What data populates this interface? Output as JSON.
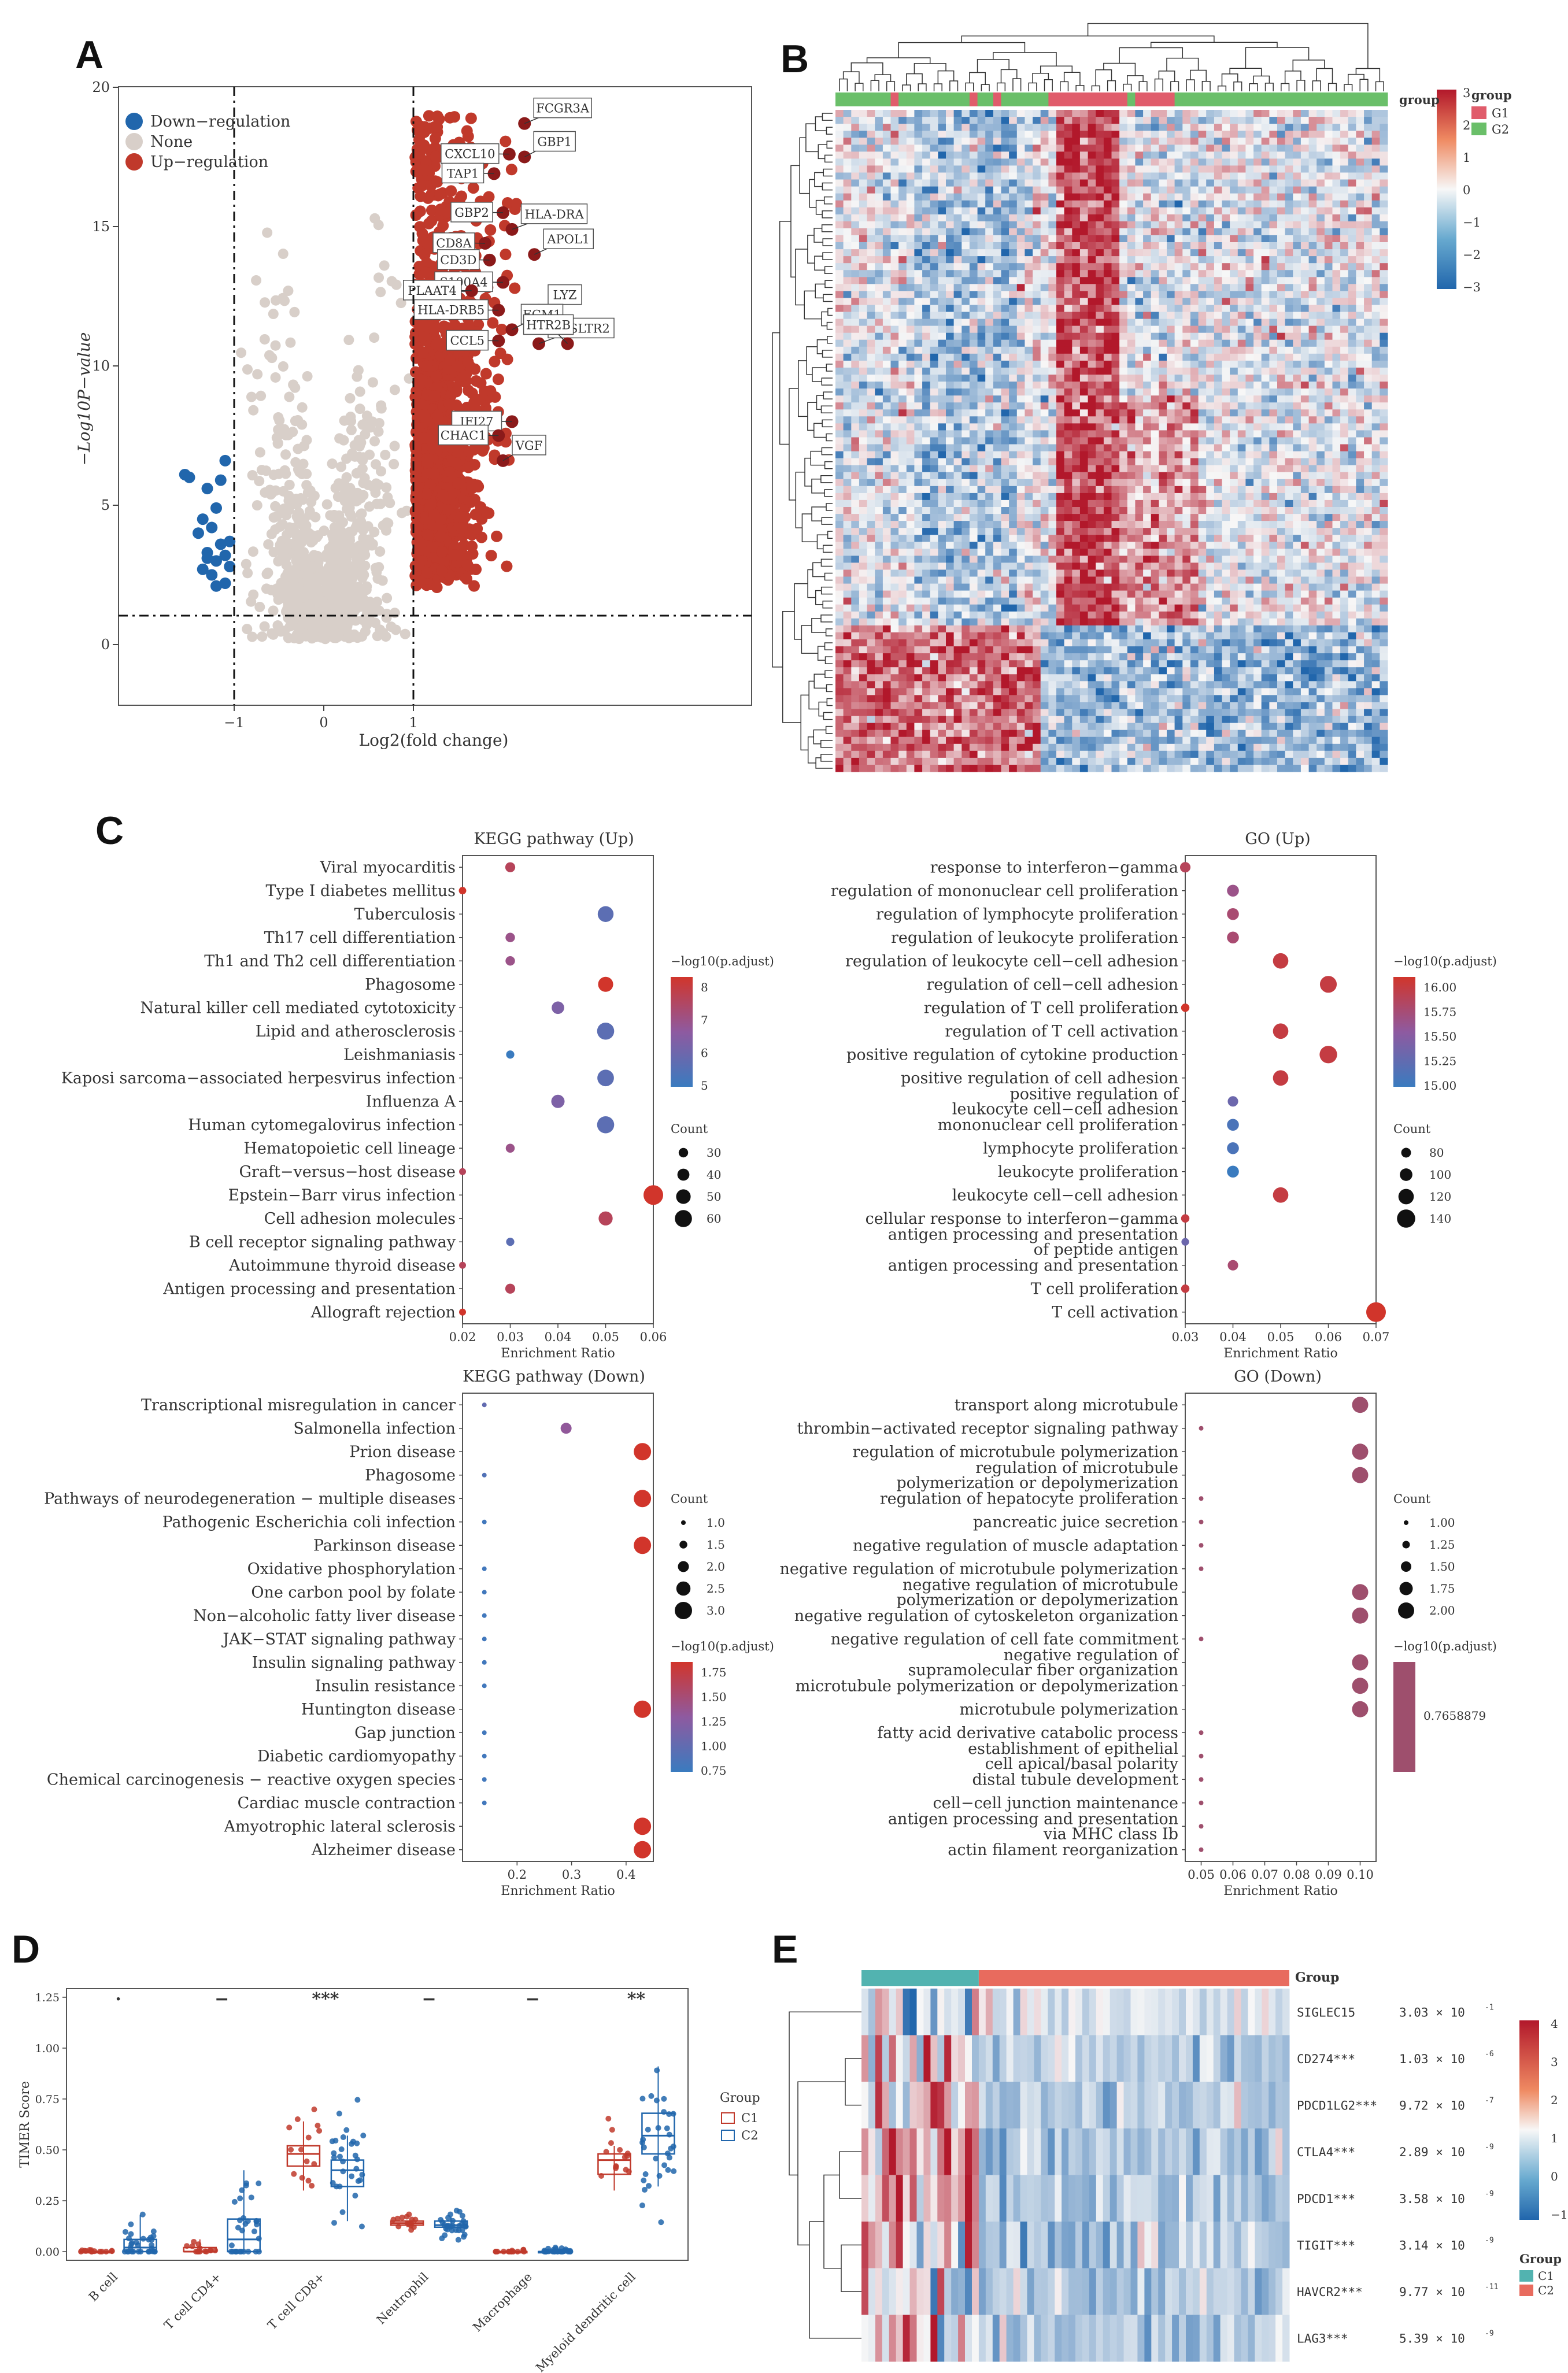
{
  "panels": {
    "A": "A",
    "B": "B",
    "C": "C",
    "D": "D",
    "E": "E"
  },
  "colors": {
    "up": "#c0392b",
    "down": "#2166ac",
    "none": "#d8cfc9",
    "g1": "#e05c6b",
    "g2": "#6abf69",
    "c1": "#52b3b0",
    "c2": "#e86b5e"
  },
  "volcano": {
    "legend": [
      "Down−regulation",
      "None",
      "Up−regulation"
    ],
    "xlabel": "Log2(fold change)",
    "ylabel": "−Log10P−value",
    "xticks": [
      "−1",
      "0",
      "1"
    ],
    "yticks": [
      "0",
      "5",
      "10",
      "15",
      "20"
    ],
    "genes": [
      {
        "name": "FCGR3A",
        "x": 2.24,
        "y": 18.7
      },
      {
        "name": "CXCL10",
        "x": 2.07,
        "y": 17.6
      },
      {
        "name": "GBP1",
        "x": 2.24,
        "y": 17.5
      },
      {
        "name": "TAP1",
        "x": 1.9,
        "y": 16.9
      },
      {
        "name": "GBP2",
        "x": 2.0,
        "y": 15.5
      },
      {
        "name": "HLA-DRA",
        "x": 2.1,
        "y": 14.9
      },
      {
        "name": "CD8A",
        "x": 1.8,
        "y": 14.4
      },
      {
        "name": "CD3D",
        "x": 1.85,
        "y": 13.8
      },
      {
        "name": "APOL1",
        "x": 2.35,
        "y": 14.0
      },
      {
        "name": "S100A4",
        "x": 2.0,
        "y": 13.0
      },
      {
        "name": "PLAAT4",
        "x": 1.65,
        "y": 12.7
      },
      {
        "name": "HLA-DRB5",
        "x": 1.95,
        "y": 12.0
      },
      {
        "name": "LYZ",
        "x": 2.4,
        "y": 12.0
      },
      {
        "name": "ECM1",
        "x": 2.1,
        "y": 11.3
      },
      {
        "name": "CCL5",
        "x": 1.95,
        "y": 10.9
      },
      {
        "name": "CYSLTR2",
        "x": 2.4,
        "y": 10.8
      },
      {
        "name": "HTR2B",
        "x": 2.72,
        "y": 10.8
      },
      {
        "name": "IFI27",
        "x": 2.1,
        "y": 8.0
      },
      {
        "name": "CHAC1",
        "x": 1.95,
        "y": 7.5
      },
      {
        "name": "VGF",
        "x": 2.0,
        "y": 6.6
      }
    ]
  },
  "heatmap_b": {
    "legend_title": "group",
    "groups": [
      "G1",
      "G2"
    ],
    "scale": [
      "3",
      "2",
      "1",
      "0",
      "−1",
      "−2",
      "−3"
    ]
  },
  "kegg_up": {
    "title": "KEGG pathway (Up)",
    "xlabel": "Enrichment Ratio",
    "xticks": [
      "0.02",
      "0.03",
      "0.04",
      "0.05",
      "0.06"
    ],
    "terms": [
      "Viral myocarditis",
      "Type I diabetes mellitus",
      "Tuberculosis",
      "Th17 cell differentiation",
      "Th1 and Th2 cell differentiation",
      "Phagosome",
      "Natural killer cell mediated cytotoxicity",
      "Lipid and atherosclerosis",
      "Leishmaniasis",
      "Kaposi sarcoma−associated herpesvirus infection",
      "Influenza A",
      "Human cytomegalovirus infection",
      "Hematopoietic cell lineage",
      "Graft−versus−host disease",
      "Epstein−Barr virus infection",
      "Cell adhesion molecules",
      "B cell receptor signaling pathway",
      "Autoimmune thyroid disease",
      "Antigen processing and presentation",
      "Allograft rejection"
    ],
    "ratio": [
      0.03,
      0.02,
      0.05,
      0.03,
      0.03,
      0.05,
      0.04,
      0.05,
      0.03,
      0.05,
      0.04,
      0.05,
      0.03,
      0.02,
      0.06,
      0.05,
      0.03,
      0.02,
      0.03,
      0.02
    ],
    "count": [
      32,
      22,
      55,
      30,
      30,
      52,
      42,
      60,
      25,
      58,
      45,
      60,
      28,
      20,
      70,
      48,
      25,
      20,
      32,
      20
    ],
    "padj": [
      8,
      9,
      5,
      7,
      7,
      9,
      6,
      5,
      4,
      5,
      6,
      5,
      7,
      8,
      9,
      8,
      5,
      8,
      8,
      9
    ],
    "legend_color_title": "−log10(p.adjust)",
    "color_ticks": [
      "8",
      "7",
      "6",
      "5"
    ],
    "legend_size_title": "Count",
    "size_ticks": [
      "30",
      "40",
      "50",
      "60"
    ]
  },
  "go_up": {
    "title": "GO (Up)",
    "xlabel": "Enrichment Ratio",
    "xticks": [
      "0.03",
      "0.04",
      "0.05",
      "0.06",
      "0.07"
    ],
    "terms": [
      "response to interferon−gamma",
      "regulation of mononuclear cell proliferation",
      "regulation of lymphocyte proliferation",
      "regulation of leukocyte proliferation",
      "regulation of leukocyte cell−cell adhesion",
      "regulation of cell−cell adhesion",
      "regulation of T cell proliferation",
      "regulation of T cell activation",
      "positive regulation of cytokine production",
      "positive regulation of cell adhesion",
      "positive regulation of\nleukocyte cell−cell adhesion",
      "mononuclear cell proliferation",
      "lymphocyte proliferation",
      "leukocyte proliferation",
      "leukocyte cell−cell adhesion",
      "cellular response to interferon−gamma",
      "antigen processing and presentation\nof peptide antigen",
      "antigen processing and presentation",
      "T cell proliferation",
      "T cell activation"
    ],
    "ratio": [
      0.03,
      0.04,
      0.04,
      0.04,
      0.05,
      0.06,
      0.03,
      0.05,
      0.06,
      0.05,
      0.04,
      0.04,
      0.04,
      0.04,
      0.05,
      0.03,
      0.03,
      0.04,
      0.03,
      0.07
    ],
    "count": [
      85,
      95,
      95,
      95,
      120,
      130,
      70,
      120,
      135,
      120,
      85,
      95,
      95,
      95,
      120,
      70,
      65,
      85,
      70,
      150
    ],
    "padj": [
      15.8,
      15.6,
      15.7,
      15.7,
      15.9,
      15.9,
      16.0,
      15.9,
      15.9,
      15.9,
      15.3,
      15.1,
      15.1,
      15.0,
      15.9,
      15.9,
      15.3,
      15.7,
      15.9,
      16.0
    ],
    "legend_color_title": "−log10(p.adjust)",
    "color_ticks": [
      "16.00",
      "15.75",
      "15.50",
      "15.25",
      "15.00"
    ],
    "legend_size_title": "Count",
    "size_ticks": [
      "80",
      "100",
      "120",
      "140"
    ]
  },
  "kegg_down": {
    "title": "KEGG pathway (Down)",
    "xlabel": "Enrichment Ratio",
    "xticks": [
      "0.2",
      "0.3",
      "0.4"
    ],
    "terms": [
      "Transcriptional misregulation in cancer",
      "Salmonella infection",
      "Prion disease",
      "Phagosome",
      "Pathways of neurodegeneration − multiple diseases",
      "Pathogenic Escherichia coli infection",
      "Parkinson disease",
      "Oxidative phosphorylation",
      "One carbon pool by folate",
      "Non−alcoholic fatty liver disease",
      "JAK−STAT signaling pathway",
      "Insulin signaling pathway",
      "Insulin resistance",
      "Huntington disease",
      "Gap junction",
      "Diabetic cardiomyopathy",
      "Chemical carcinogenesis − reactive oxygen species",
      "Cardiac muscle contraction",
      "Amyotrophic lateral sclerosis",
      "Alzheimer disease"
    ],
    "ratio": [
      0.14,
      0.29,
      0.43,
      0.14,
      0.43,
      0.14,
      0.43,
      0.14,
      0.14,
      0.14,
      0.14,
      0.14,
      0.14,
      0.43,
      0.14,
      0.14,
      0.14,
      0.14,
      0.43,
      0.43
    ],
    "count": [
      1,
      2,
      3,
      1,
      3,
      1,
      3,
      1,
      1,
      1,
      1,
      1,
      1,
      3,
      1,
      1,
      1,
      1,
      3,
      3
    ],
    "padj": [
      1.0,
      1.3,
      1.8,
      0.9,
      1.8,
      0.8,
      1.8,
      0.8,
      0.8,
      0.8,
      0.8,
      0.8,
      0.8,
      1.8,
      0.8,
      0.8,
      0.8,
      0.8,
      1.8,
      1.8
    ],
    "legend_size_title": "Count",
    "size_ticks": [
      "1.0",
      "1.5",
      "2.0",
      "2.5",
      "3.0"
    ],
    "legend_color_title": "−log10(p.adjust)",
    "color_ticks": [
      "1.75",
      "1.50",
      "1.25",
      "1.00",
      "0.75"
    ]
  },
  "go_down": {
    "title": "GO (Down)",
    "xlabel": "Enrichment Ratio",
    "xticks": [
      "0.05",
      "0.06",
      "0.07",
      "0.08",
      "0.09",
      "0.10"
    ],
    "terms": [
      "transport along microtubule",
      "thrombin−activated receptor signaling pathway",
      "regulation of microtubule polymerization",
      "regulation of microtubule\npolymerization or depolymerization",
      "regulation of hepatocyte proliferation",
      "pancreatic juice secretion",
      "negative regulation of muscle adaptation",
      "negative regulation of microtubule polymerization",
      "negative regulation of microtubule\npolymerization or depolymerization",
      "negative regulation of cytoskeleton organization",
      "negative regulation of cell fate commitment",
      "negative regulation of\nsupramolecular fiber organization",
      "microtubule polymerization or depolymerization",
      "microtubule polymerization",
      "fatty acid derivative catabolic process",
      "establishment of epithelial\ncell apical/basal polarity",
      "distal tubule development",
      "cell−cell junction maintenance",
      "antigen processing and presentation\nvia MHC class Ib",
      "actin filament reorganization"
    ],
    "ratio": [
      0.1,
      0.05,
      0.1,
      0.1,
      0.05,
      0.05,
      0.05,
      0.05,
      0.1,
      0.1,
      0.05,
      0.1,
      0.1,
      0.1,
      0.05,
      0.05,
      0.05,
      0.05,
      0.05,
      0.05
    ],
    "count": [
      2,
      1,
      2,
      2,
      1,
      1,
      1,
      1,
      2,
      2,
      1,
      2,
      2,
      2,
      1,
      1,
      1,
      1,
      1,
      1
    ],
    "legend_size_title": "Count",
    "size_ticks": [
      "1.00",
      "1.25",
      "1.50",
      "1.75",
      "2.00"
    ],
    "legend_color_title": "−log10(p.adjust)",
    "color_value": "0.7658879"
  },
  "timer": {
    "ylabel": "TIMER Score",
    "yticks": [
      "0.00",
      "0.25",
      "0.50",
      "0.75",
      "1.00",
      "1.25"
    ],
    "categories": [
      "B cell",
      "T cell CD4+",
      "T cell CD8+",
      "Neutrophil",
      "Macrophage",
      "Myeloid dendritic cell"
    ],
    "signif": [
      "·",
      "−",
      "***",
      "−",
      "−",
      "**"
    ],
    "legend_title": "Group",
    "groups": [
      "C1",
      "C2"
    ],
    "c1": {
      "median": [
        0.0,
        0.0,
        0.48,
        0.14,
        0.0,
        0.45
      ],
      "q1": [
        0.0,
        0.0,
        0.42,
        0.13,
        0.0,
        0.38
      ],
      "q3": [
        0.0,
        0.02,
        0.52,
        0.15,
        0.0,
        0.48
      ],
      "lo": [
        0.0,
        0.0,
        0.3,
        0.12,
        0.0,
        0.3
      ],
      "hi": [
        0.0,
        0.06,
        0.64,
        0.15,
        0.0,
        0.52
      ]
    },
    "c2": {
      "median": [
        0.02,
        0.06,
        0.4,
        0.13,
        0.0,
        0.57
      ],
      "q1": [
        0.0,
        0.0,
        0.32,
        0.12,
        0.0,
        0.48
      ],
      "q3": [
        0.06,
        0.16,
        0.45,
        0.15,
        0.0,
        0.68
      ],
      "lo": [
        0.0,
        0.0,
        0.15,
        0.11,
        0.0,
        0.32
      ],
      "hi": [
        0.18,
        0.4,
        0.57,
        0.17,
        0.0,
        0.91
      ]
    }
  },
  "heatmap_e": {
    "legend_title": "Group",
    "groups": [
      "C1",
      "C2"
    ],
    "top_label": "Group",
    "scale": [
      "4",
      "3",
      "2",
      "1",
      "0",
      "−1"
    ],
    "genes": [
      {
        "name": "SIGLEC15",
        "p": "3.03 × 10",
        "exp": "-1"
      },
      {
        "name": "CD274***",
        "p": "1.03 × 10",
        "exp": "-6"
      },
      {
        "name": "PDCD1LG2***",
        "p": "9.72 × 10",
        "exp": "-7"
      },
      {
        "name": "CTLA4***",
        "p": "2.89 × 10",
        "exp": "-9"
      },
      {
        "name": "PDCD1***",
        "p": "3.58 × 10",
        "exp": "-9"
      },
      {
        "name": "TIGIT***",
        "p": "3.14 × 10",
        "exp": "-9"
      },
      {
        "name": "HAVCR2***",
        "p": "9.77 × 10",
        "exp": "-11"
      },
      {
        "name": "LAG3***",
        "p": "5.39 × 10",
        "exp": "-9"
      }
    ]
  }
}
